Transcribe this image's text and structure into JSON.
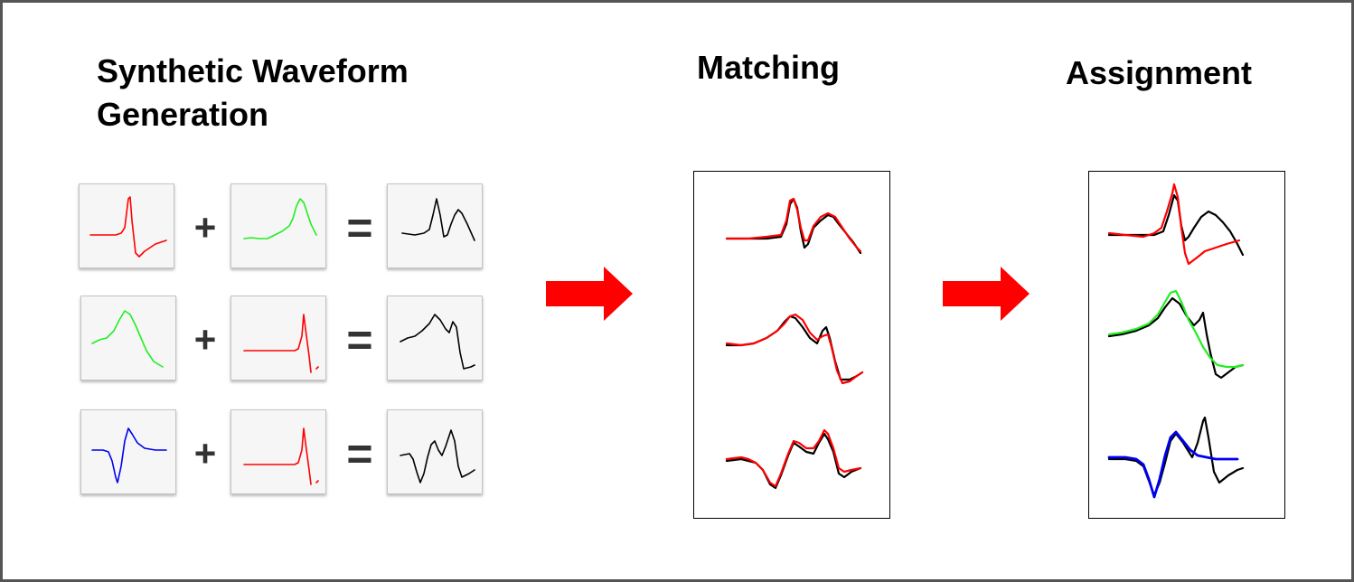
{
  "headings": {
    "synthetic": "Synthetic Waveform Generation",
    "matching": "Matching",
    "assignment": "Assignment"
  },
  "operators": {
    "plus": "+",
    "equals": "="
  },
  "colors": {
    "red": "#ff0000",
    "green": "#22ee22",
    "blue": "#0000ee",
    "black": "#000000",
    "arrow": "#ff0000"
  }
}
